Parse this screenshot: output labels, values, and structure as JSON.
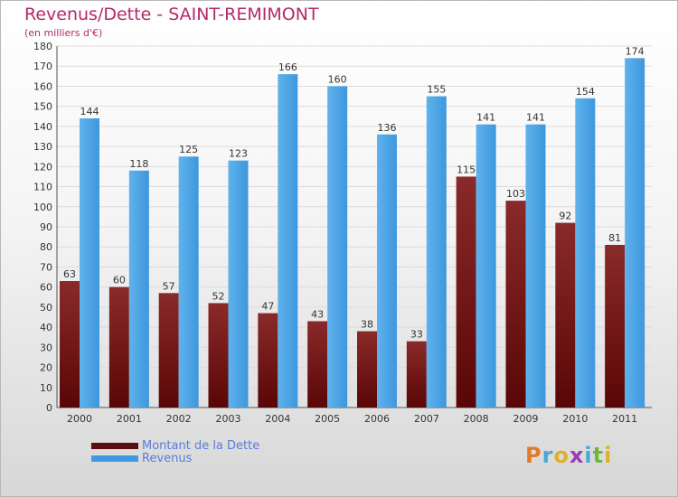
{
  "chart_data": {
    "type": "bar",
    "title": "Revenus/Dette - SAINT-REMIMONT",
    "subtitle": "(en milliers d'€)",
    "categories": [
      "2000",
      "2001",
      "2002",
      "2003",
      "2004",
      "2005",
      "2006",
      "2007",
      "2008",
      "2009",
      "2010",
      "2011"
    ],
    "series": [
      {
        "name": "Montant de la Dette",
        "values": [
          63,
          60,
          57,
          52,
          47,
          43,
          38,
          33,
          115,
          103,
          92,
          81
        ],
        "color": "#7b1c1c"
      },
      {
        "name": "Revenus",
        "values": [
          144,
          118,
          125,
          123,
          166,
          160,
          136,
          155,
          141,
          141,
          154,
          174
        ],
        "color": "#4da3e6"
      }
    ],
    "ylim": [
      0,
      180
    ],
    "yticks": [
      0,
      10,
      20,
      30,
      40,
      50,
      60,
      70,
      80,
      90,
      100,
      110,
      120,
      130,
      140,
      150,
      160,
      170,
      180
    ],
    "grid": true,
    "legend_position": "bottom-left"
  },
  "brand": {
    "letters": [
      {
        "ch": "P",
        "color": "#e07b2b"
      },
      {
        "ch": "r",
        "color": "#4aa8d8"
      },
      {
        "ch": "o",
        "color": "#e0b02b"
      },
      {
        "ch": "x",
        "color": "#9a3fb0"
      },
      {
        "ch": "i",
        "color": "#4aa8d8"
      },
      {
        "ch": "t",
        "color": "#6cb83a"
      },
      {
        "ch": "i",
        "color": "#e0b02b"
      }
    ]
  }
}
